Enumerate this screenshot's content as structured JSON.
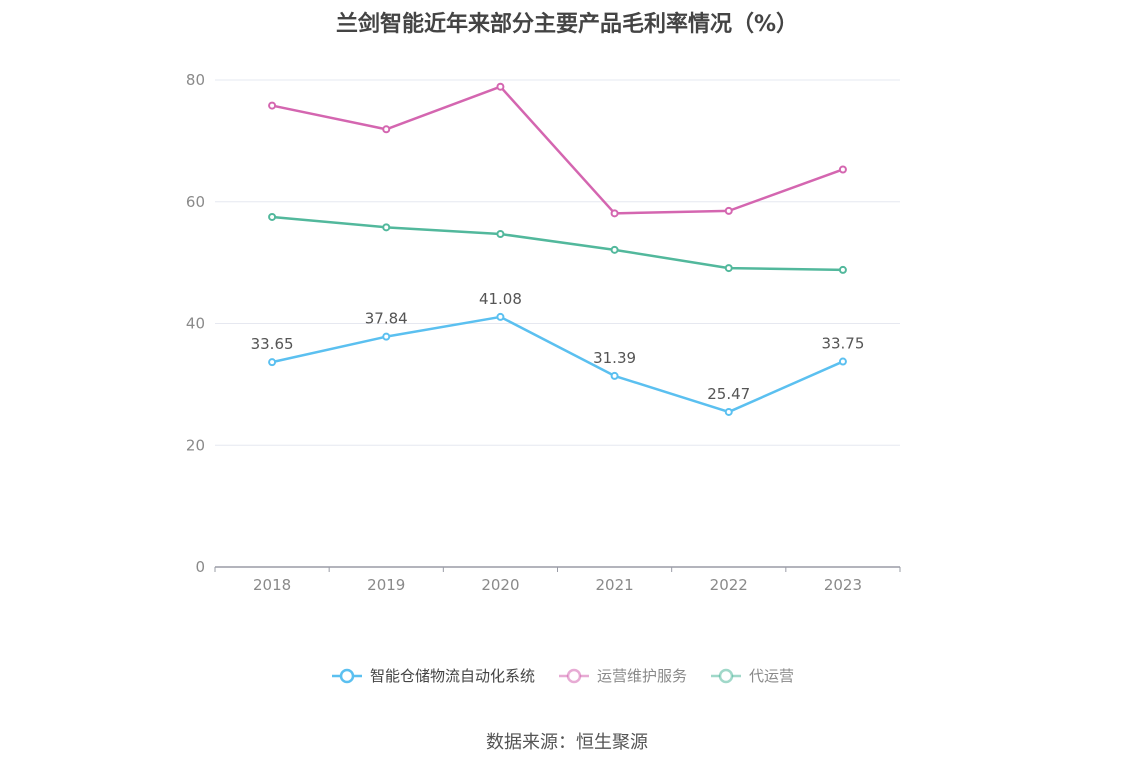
{
  "chart_data": {
    "type": "line",
    "title": "兰剑智能近年来部分主要产品毛利率情况（%）",
    "categories": [
      "2018",
      "2019",
      "2020",
      "2021",
      "2022",
      "2023"
    ],
    "ylim": [
      0,
      80
    ],
    "yticks": [
      "0",
      "20",
      "40",
      "60",
      "80"
    ],
    "grid": true,
    "legend_position": "bottom",
    "series": [
      {
        "name": "智能仓储物流自动化系统",
        "color": "#5bc0f0",
        "values": [
          33.65,
          37.84,
          41.08,
          31.39,
          25.47,
          33.75
        ],
        "labels": [
          "33.65",
          "37.84",
          "41.08",
          "31.39",
          "25.47",
          "33.75"
        ]
      },
      {
        "name": "运营维护服务",
        "color": "#d466b0",
        "values": [
          75.8,
          71.9,
          78.9,
          58.1,
          58.5,
          65.3
        ]
      },
      {
        "name": "代运营",
        "color": "#52b89c",
        "values": [
          57.5,
          55.8,
          54.7,
          52.1,
          49.1,
          48.8
        ]
      }
    ]
  },
  "source": "数据来源：恒生聚源"
}
